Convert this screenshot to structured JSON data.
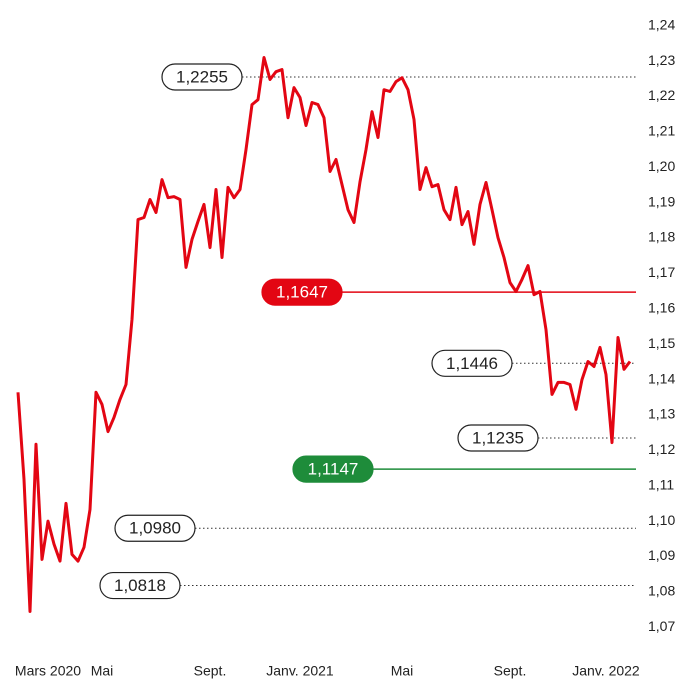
{
  "chart_data": {
    "type": "line",
    "categories": [
      null,
      null,
      null,
      null,
      null,
      "Mars 2020",
      null,
      null,
      null,
      null,
      null,
      null,
      null,
      null,
      "Mai",
      null,
      null,
      null,
      null,
      null,
      null,
      null,
      null,
      null,
      null,
      null,
      null,
      null,
      null,
      null,
      null,
      null,
      "Sept.",
      null,
      null,
      null,
      null,
      null,
      null,
      null,
      null,
      null,
      null,
      null,
      null,
      null,
      null,
      "Janv. 2021",
      null,
      null,
      null,
      null,
      null,
      null,
      null,
      null,
      null,
      null,
      null,
      null,
      null,
      null,
      null,
      null,
      "Mai",
      null,
      null,
      null,
      null,
      null,
      null,
      null,
      null,
      null,
      null,
      null,
      null,
      null,
      null,
      null,
      null,
      null,
      "Sept.",
      null,
      null,
      null,
      null,
      null,
      null,
      null,
      null,
      null,
      null,
      null,
      null,
      null,
      null,
      null,
      "Janv. 2022",
      null,
      null,
      null,
      null
    ],
    "series": [
      {
        "color": "#e30613",
        "values": [
          1.1364,
          1.1118,
          1.0745,
          1.1217,
          1.0892,
          1.1,
          1.0935,
          1.0887,
          1.105,
          1.0906,
          1.0887,
          1.0926,
          1.1033,
          1.1364,
          1.133,
          1.1253,
          1.1293,
          1.1344,
          1.1386,
          1.157,
          1.1852,
          1.1858,
          1.1909,
          1.1872,
          1.1965,
          1.1914,
          1.1917,
          1.1909,
          1.1717,
          1.1796,
          1.1847,
          1.1895,
          1.1773,
          1.1937,
          1.1745,
          1.1943,
          1.1914,
          1.1937,
          1.205,
          1.2177,
          1.2191,
          1.231,
          1.2248,
          1.227,
          1.2276,
          1.214,
          1.2225,
          1.2197,
          1.2118,
          1.2183,
          1.2177,
          1.214,
          1.1988,
          1.2022,
          1.1951,
          1.188,
          1.1844,
          1.1959,
          1.205,
          1.2157,
          1.2084,
          1.2219,
          1.2214,
          1.2242,
          1.2253,
          1.2219,
          1.2135,
          1.1937,
          1.1999,
          1.1945,
          1.1951,
          1.188,
          1.1852,
          1.1943,
          1.1838,
          1.1875,
          1.1782,
          1.1895,
          1.1957,
          1.188,
          1.1801,
          1.1745,
          1.1674,
          1.1649,
          1.1683,
          1.1722,
          1.164,
          1.1649,
          1.1541,
          1.1358,
          1.1392,
          1.1392,
          1.1386,
          1.1316,
          1.14,
          1.1451,
          1.1437,
          1.1491,
          1.1414,
          1.1222,
          1.1519,
          1.1429,
          1.1451
        ]
      }
    ],
    "ylim": [
      1.065,
      1.245
    ],
    "yticks": [
      {
        "value": 1.07,
        "label": "1,07"
      },
      {
        "value": 1.08,
        "label": "1,08"
      },
      {
        "value": 1.09,
        "label": "1,09"
      },
      {
        "value": 1.1,
        "label": "1,10"
      },
      {
        "value": 1.11,
        "label": "1,11"
      },
      {
        "value": 1.12,
        "label": "1,12"
      },
      {
        "value": 1.13,
        "label": "1,13"
      },
      {
        "value": 1.14,
        "label": "1,14"
      },
      {
        "value": 1.15,
        "label": "1,15"
      },
      {
        "value": 1.16,
        "label": "1,16"
      },
      {
        "value": 1.17,
        "label": "1,17"
      },
      {
        "value": 1.18,
        "label": "1,18"
      },
      {
        "value": 1.19,
        "label": "1,19"
      },
      {
        "value": 1.2,
        "label": "1,20"
      },
      {
        "value": 1.21,
        "label": "1,21"
      },
      {
        "value": 1.22,
        "label": "1,22"
      },
      {
        "value": 1.23,
        "label": "1,23"
      },
      {
        "value": 1.24,
        "label": "1,24"
      }
    ],
    "grid": false,
    "annotations": [
      {
        "value": 1.2255,
        "label": "1,2255",
        "color": "#222222",
        "filled": false
      },
      {
        "value": 1.1647,
        "label": "1,1647",
        "color": "#e30613",
        "filled": true
      },
      {
        "value": 1.1446,
        "label": "1,1446",
        "color": "#222222",
        "filled": false
      },
      {
        "value": 1.1235,
        "label": "1,1235",
        "color": "#222222",
        "filled": false
      },
      {
        "value": 1.1147,
        "label": "1,1147",
        "color": "#1e8c3a",
        "filled": true
      },
      {
        "value": 1.098,
        "label": "1,0980",
        "color": "#222222",
        "filled": false
      },
      {
        "value": 1.0818,
        "label": "1,0818",
        "color": "#222222",
        "filled": false
      }
    ]
  }
}
